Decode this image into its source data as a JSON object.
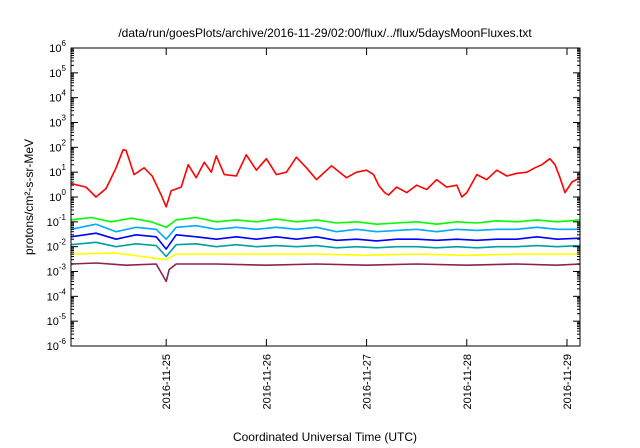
{
  "chart_data": {
    "type": "line",
    "title": "/data/run/goesPlots/archive/2016-11-29/02:00/flux/../flux/5daysMoonFluxes.txt",
    "xlabel": "Coordinated Universal Time (UTC)",
    "ylabel": "protons/cm²-s-sr-MeV",
    "yscale": "log",
    "ylim": [
      1e-06,
      1000000.0
    ],
    "xlim_days": [
      24.05,
      29.13
    ],
    "x_ticks": [
      {
        "label": "2016-11-25",
        "day": 25
      },
      {
        "label": "2016-11-26",
        "day": 26
      },
      {
        "label": "2016-11-27",
        "day": 27
      },
      {
        "label": "2016-11-28",
        "day": 28
      },
      {
        "label": "2016-11-29",
        "day": 29
      }
    ],
    "y_ticks": [
      {
        "base": "10",
        "exp": "6",
        "value": 1000000.0
      },
      {
        "base": "10",
        "exp": "5",
        "value": 100000.0
      },
      {
        "base": "10",
        "exp": "4",
        "value": 10000.0
      },
      {
        "base": "10",
        "exp": "3",
        "value": 1000.0
      },
      {
        "base": "10",
        "exp": "2",
        "value": 100.0
      },
      {
        "base": "10",
        "exp": "1",
        "value": 10.0
      },
      {
        "base": "10",
        "exp": "0",
        "value": 1.0
      },
      {
        "base": "10",
        "exp": "-1",
        "value": 0.1
      },
      {
        "base": "10",
        "exp": "-2",
        "value": 0.01
      },
      {
        "base": "10",
        "exp": "-3",
        "value": 0.001
      },
      {
        "base": "10",
        "exp": "-4",
        "value": 0.0001
      },
      {
        "base": "10",
        "exp": "-5",
        "value": 1e-05
      },
      {
        "base": "10",
        "exp": "-6",
        "value": 1e-06
      }
    ],
    "grid": false,
    "legend": "none",
    "series": [
      {
        "color": "#ff0000",
        "points": [
          [
            24.05,
            3.5
          ],
          [
            24.2,
            2.5
          ],
          [
            24.3,
            1.0
          ],
          [
            24.4,
            2.2
          ],
          [
            24.5,
            15
          ],
          [
            24.57,
            80
          ],
          [
            24.6,
            75
          ],
          [
            24.68,
            8
          ],
          [
            24.78,
            15
          ],
          [
            24.86,
            7
          ],
          [
            24.95,
            1.2
          ],
          [
            25.0,
            0.4
          ],
          [
            25.05,
            1.8
          ],
          [
            25.15,
            2.5
          ],
          [
            25.22,
            20
          ],
          [
            25.3,
            6
          ],
          [
            25.38,
            25
          ],
          [
            25.45,
            10
          ],
          [
            25.5,
            45
          ],
          [
            25.58,
            8
          ],
          [
            25.7,
            7
          ],
          [
            25.8,
            50
          ],
          [
            25.9,
            12
          ],
          [
            26.0,
            35
          ],
          [
            26.1,
            8
          ],
          [
            26.2,
            10
          ],
          [
            26.3,
            40
          ],
          [
            26.4,
            15
          ],
          [
            26.5,
            5
          ],
          [
            26.65,
            18
          ],
          [
            26.8,
            6
          ],
          [
            26.9,
            10
          ],
          [
            27.0,
            12
          ],
          [
            27.07,
            8
          ],
          [
            27.12,
            3
          ],
          [
            27.18,
            1.5
          ],
          [
            27.22,
            1.2
          ],
          [
            27.3,
            2.5
          ],
          [
            27.4,
            1.5
          ],
          [
            27.5,
            3
          ],
          [
            27.6,
            2
          ],
          [
            27.7,
            5
          ],
          [
            27.8,
            2.5
          ],
          [
            27.9,
            3
          ],
          [
            27.95,
            1.0
          ],
          [
            28.0,
            1.5
          ],
          [
            28.1,
            8
          ],
          [
            28.2,
            5
          ],
          [
            28.3,
            12
          ],
          [
            28.4,
            7
          ],
          [
            28.5,
            9
          ],
          [
            28.6,
            10
          ],
          [
            28.68,
            15
          ],
          [
            28.75,
            20
          ],
          [
            28.83,
            35
          ],
          [
            28.88,
            20
          ],
          [
            28.93,
            6
          ],
          [
            28.98,
            1.5
          ],
          [
            29.05,
            4
          ],
          [
            29.13,
            6
          ]
        ]
      },
      {
        "color": "#00ff00",
        "points": [
          [
            24.05,
            0.12
          ],
          [
            24.25,
            0.15
          ],
          [
            24.45,
            0.1
          ],
          [
            24.65,
            0.14
          ],
          [
            24.85,
            0.1
          ],
          [
            25.0,
            0.06
          ],
          [
            25.1,
            0.12
          ],
          [
            25.3,
            0.15
          ],
          [
            25.5,
            0.1
          ],
          [
            25.7,
            0.12
          ],
          [
            25.9,
            0.1
          ],
          [
            26.1,
            0.13
          ],
          [
            26.3,
            0.1
          ],
          [
            26.5,
            0.12
          ],
          [
            26.7,
            0.09
          ],
          [
            26.9,
            0.1
          ],
          [
            27.1,
            0.08
          ],
          [
            27.3,
            0.09
          ],
          [
            27.5,
            0.1
          ],
          [
            27.7,
            0.08
          ],
          [
            27.9,
            0.1
          ],
          [
            28.1,
            0.09
          ],
          [
            28.3,
            0.11
          ],
          [
            28.5,
            0.1
          ],
          [
            28.7,
            0.12
          ],
          [
            28.9,
            0.1
          ],
          [
            29.13,
            0.12
          ]
        ]
      },
      {
        "color": "#00aaff",
        "points": [
          [
            24.05,
            0.05
          ],
          [
            24.3,
            0.08
          ],
          [
            24.5,
            0.04
          ],
          [
            24.7,
            0.06
          ],
          [
            24.9,
            0.05
          ],
          [
            25.0,
            0.02
          ],
          [
            25.1,
            0.06
          ],
          [
            25.3,
            0.07
          ],
          [
            25.5,
            0.05
          ],
          [
            25.7,
            0.06
          ],
          [
            25.9,
            0.05
          ],
          [
            26.1,
            0.06
          ],
          [
            26.3,
            0.05
          ],
          [
            26.5,
            0.06
          ],
          [
            26.7,
            0.04
          ],
          [
            26.9,
            0.05
          ],
          [
            27.1,
            0.04
          ],
          [
            27.3,
            0.045
          ],
          [
            27.5,
            0.05
          ],
          [
            27.7,
            0.04
          ],
          [
            27.9,
            0.05
          ],
          [
            28.1,
            0.045
          ],
          [
            28.3,
            0.05
          ],
          [
            28.5,
            0.05
          ],
          [
            28.7,
            0.06
          ],
          [
            28.9,
            0.05
          ],
          [
            29.13,
            0.05
          ]
        ]
      },
      {
        "color": "#0000ff",
        "points": [
          [
            24.05,
            0.025
          ],
          [
            24.3,
            0.035
          ],
          [
            24.5,
            0.02
          ],
          [
            24.7,
            0.03
          ],
          [
            24.9,
            0.025
          ],
          [
            25.0,
            0.008
          ],
          [
            25.1,
            0.03
          ],
          [
            25.3,
            0.025
          ],
          [
            25.5,
            0.02
          ],
          [
            25.7,
            0.025
          ],
          [
            25.9,
            0.02
          ],
          [
            26.1,
            0.025
          ],
          [
            26.3,
            0.02
          ],
          [
            26.5,
            0.025
          ],
          [
            26.7,
            0.018
          ],
          [
            26.9,
            0.02
          ],
          [
            27.1,
            0.017
          ],
          [
            27.3,
            0.02
          ],
          [
            27.5,
            0.02
          ],
          [
            27.7,
            0.018
          ],
          [
            27.9,
            0.02
          ],
          [
            28.1,
            0.018
          ],
          [
            28.3,
            0.02
          ],
          [
            28.5,
            0.02
          ],
          [
            28.7,
            0.025
          ],
          [
            28.9,
            0.02
          ],
          [
            29.13,
            0.022
          ]
        ]
      },
      {
        "color": "#00a0a0",
        "points": [
          [
            24.05,
            0.012
          ],
          [
            24.3,
            0.015
          ],
          [
            24.5,
            0.01
          ],
          [
            24.7,
            0.013
          ],
          [
            24.9,
            0.011
          ],
          [
            25.0,
            0.004
          ],
          [
            25.1,
            0.012
          ],
          [
            25.3,
            0.013
          ],
          [
            25.5,
            0.01
          ],
          [
            25.7,
            0.012
          ],
          [
            25.9,
            0.01
          ],
          [
            26.1,
            0.011
          ],
          [
            26.3,
            0.01
          ],
          [
            26.5,
            0.011
          ],
          [
            26.7,
            0.009
          ],
          [
            26.9,
            0.01
          ],
          [
            27.1,
            0.009
          ],
          [
            27.3,
            0.01
          ],
          [
            27.5,
            0.01
          ],
          [
            27.7,
            0.009
          ],
          [
            27.9,
            0.01
          ],
          [
            28.1,
            0.009
          ],
          [
            28.3,
            0.01
          ],
          [
            28.5,
            0.01
          ],
          [
            28.7,
            0.011
          ],
          [
            28.9,
            0.01
          ],
          [
            29.13,
            0.011
          ]
        ]
      },
      {
        "color": "#ffff00",
        "points": [
          [
            24.05,
            0.005
          ],
          [
            24.5,
            0.0055
          ],
          [
            25.0,
            0.003
          ],
          [
            25.1,
            0.005
          ],
          [
            25.5,
            0.005
          ],
          [
            26.0,
            0.005
          ],
          [
            26.5,
            0.005
          ],
          [
            27.0,
            0.0045
          ],
          [
            27.5,
            0.005
          ],
          [
            28.0,
            0.0045
          ],
          [
            28.5,
            0.005
          ],
          [
            29.13,
            0.005
          ]
        ]
      },
      {
        "color": "#8b2252",
        "points": [
          [
            24.05,
            0.002
          ],
          [
            24.3,
            0.0022
          ],
          [
            24.6,
            0.0018
          ],
          [
            24.9,
            0.002
          ],
          [
            25.0,
            0.0004
          ],
          [
            25.03,
            0.0012
          ],
          [
            25.1,
            0.002
          ],
          [
            25.5,
            0.002
          ],
          [
            26.0,
            0.0018
          ],
          [
            26.5,
            0.002
          ],
          [
            27.0,
            0.0018
          ],
          [
            27.5,
            0.002
          ],
          [
            28.0,
            0.0018
          ],
          [
            28.5,
            0.002
          ],
          [
            28.9,
            0.0018
          ],
          [
            29.13,
            0.002
          ]
        ]
      }
    ]
  }
}
